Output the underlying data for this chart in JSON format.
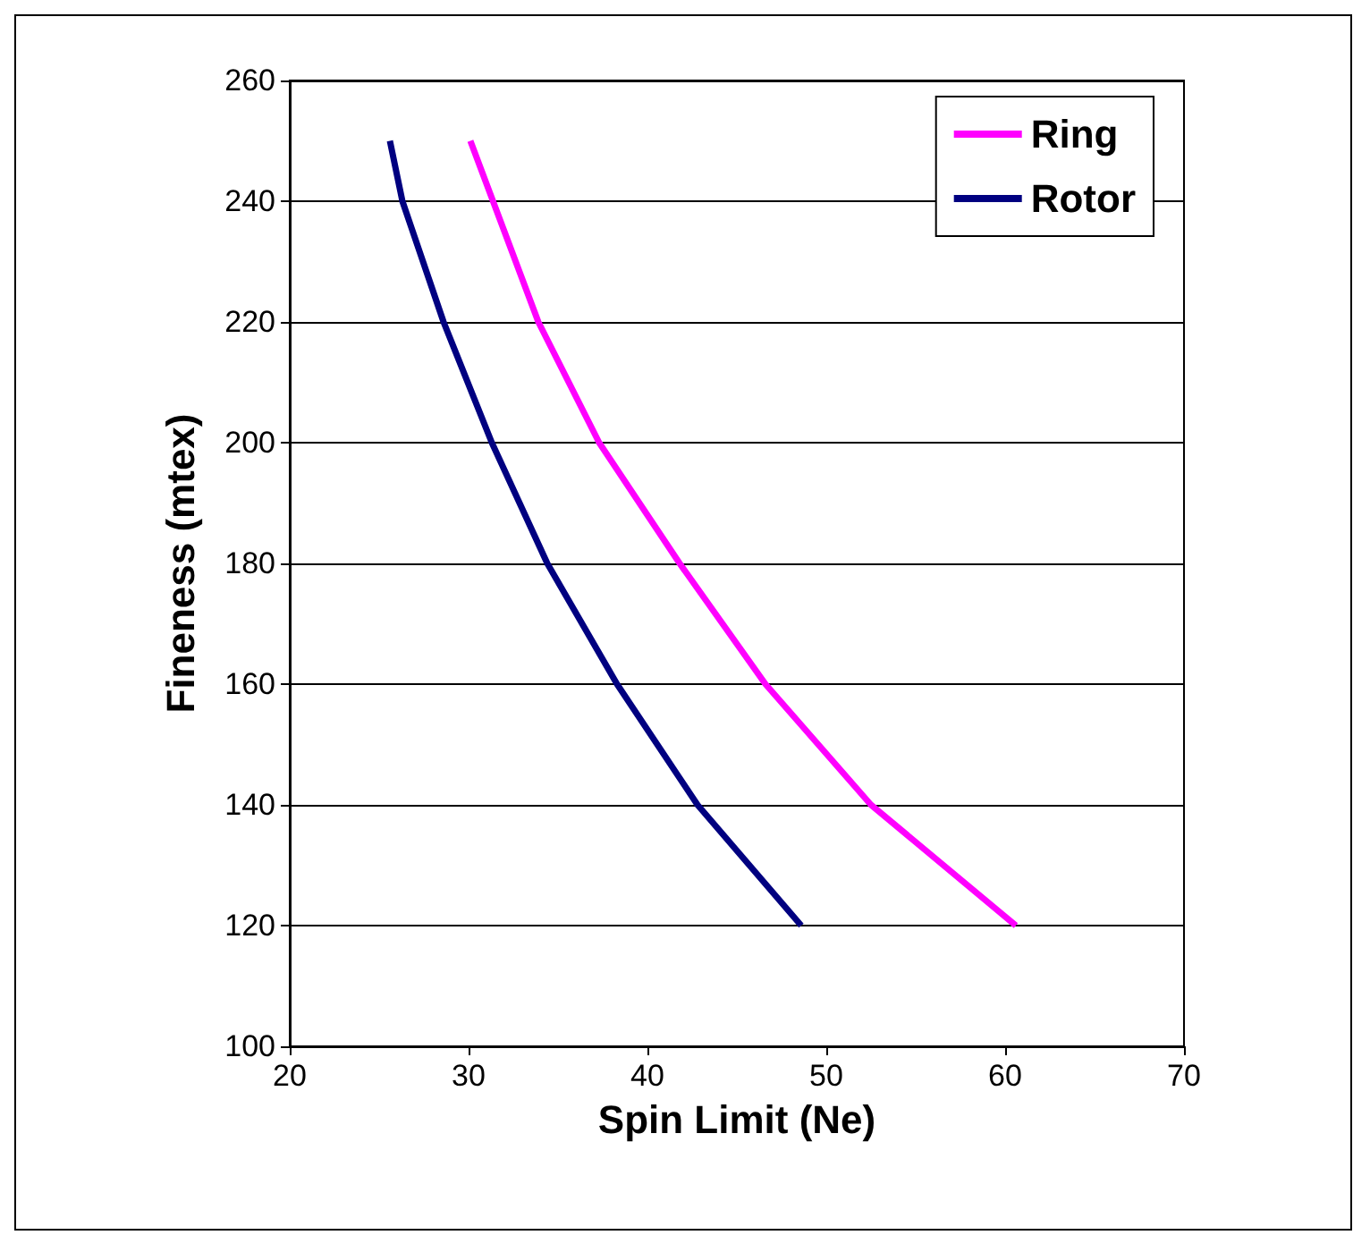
{
  "chart_data": {
    "type": "line",
    "xlabel": "Spin Limit (Ne)",
    "ylabel": "Fineness (mtex)",
    "series": [
      {
        "name": "Ring",
        "color": "#ff00ff",
        "x": [
          30.1,
          33.9,
          37.3,
          41.8,
          46.6,
          52.5,
          60.6
        ],
        "values": [
          250,
          220,
          200,
          180,
          160,
          140,
          120
        ]
      },
      {
        "name": "Rotor",
        "color": "#000080",
        "x": [
          25.6,
          26.3,
          28.6,
          31.3,
          34.4,
          38.3,
          42.8,
          48.6
        ],
        "values": [
          250,
          240,
          220,
          200,
          180,
          160,
          140,
          120
        ]
      }
    ],
    "xlim": [
      20,
      70
    ],
    "xticks": [
      20,
      30,
      40,
      50,
      60,
      70
    ],
    "ylim": [
      100,
      260
    ],
    "yticks": [
      100,
      120,
      140,
      160,
      180,
      200,
      220,
      240,
      260
    ],
    "grid": "y",
    "legend": "top right",
    "marker": "none",
    "line_style": "solid"
  }
}
